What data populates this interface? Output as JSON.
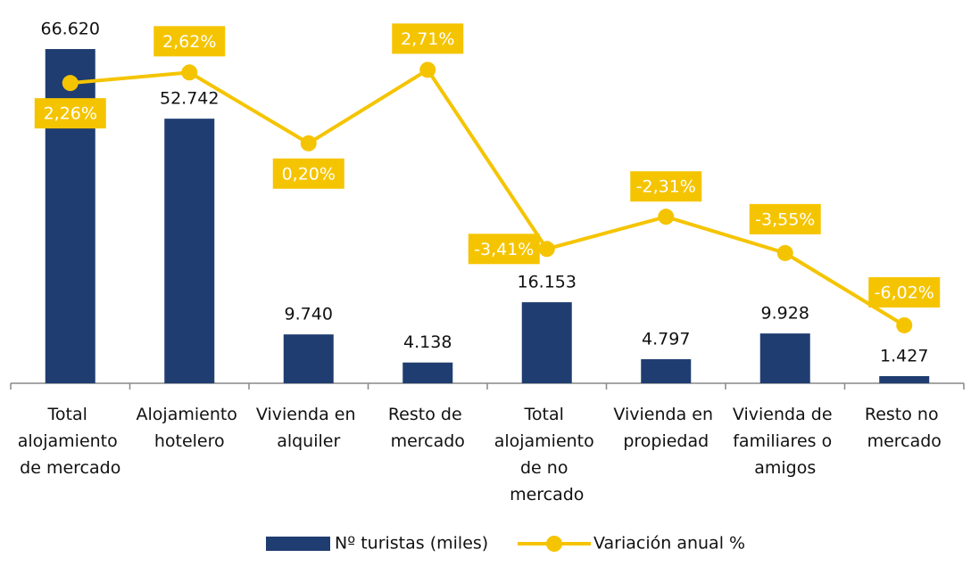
{
  "chart_data": {
    "type": "bar",
    "categories": [
      "Total alojamiento de mercado",
      "Alojamiento hotelero",
      "Vivienda en alquiler",
      "Resto de mercado",
      "Total alojamiento de no mercado",
      "Vivienda en propiedad",
      "Vivienda de familiares o amigos",
      "Resto no mercado"
    ],
    "series": [
      {
        "name": "Nº turistas (miles)",
        "type": "bar",
        "color": "#1f3d70",
        "values": [
          66620,
          52742,
          9740,
          4138,
          16153,
          4797,
          9928,
          1427
        ],
        "value_labels": [
          "66.620",
          "52.742",
          "9.740",
          "4.138",
          "16.153",
          "4.797",
          "9.928",
          "1.427"
        ]
      },
      {
        "name": "Variación anual %",
        "type": "line",
        "axis": "y2",
        "color": "#f5c400",
        "values": [
          2.26,
          2.62,
          0.2,
          2.71,
          -3.41,
          -2.31,
          -3.55,
          -6.02
        ],
        "value_labels": [
          "2,26%",
          "2,62%",
          "0,20%",
          "2,71%",
          "-3,41%",
          "-2,31%",
          "-3,55%",
          "-6,02%"
        ]
      }
    ],
    "ylim": [
      0,
      70000
    ],
    "y2lim": [
      -8,
      4
    ],
    "legend": "bottom"
  }
}
